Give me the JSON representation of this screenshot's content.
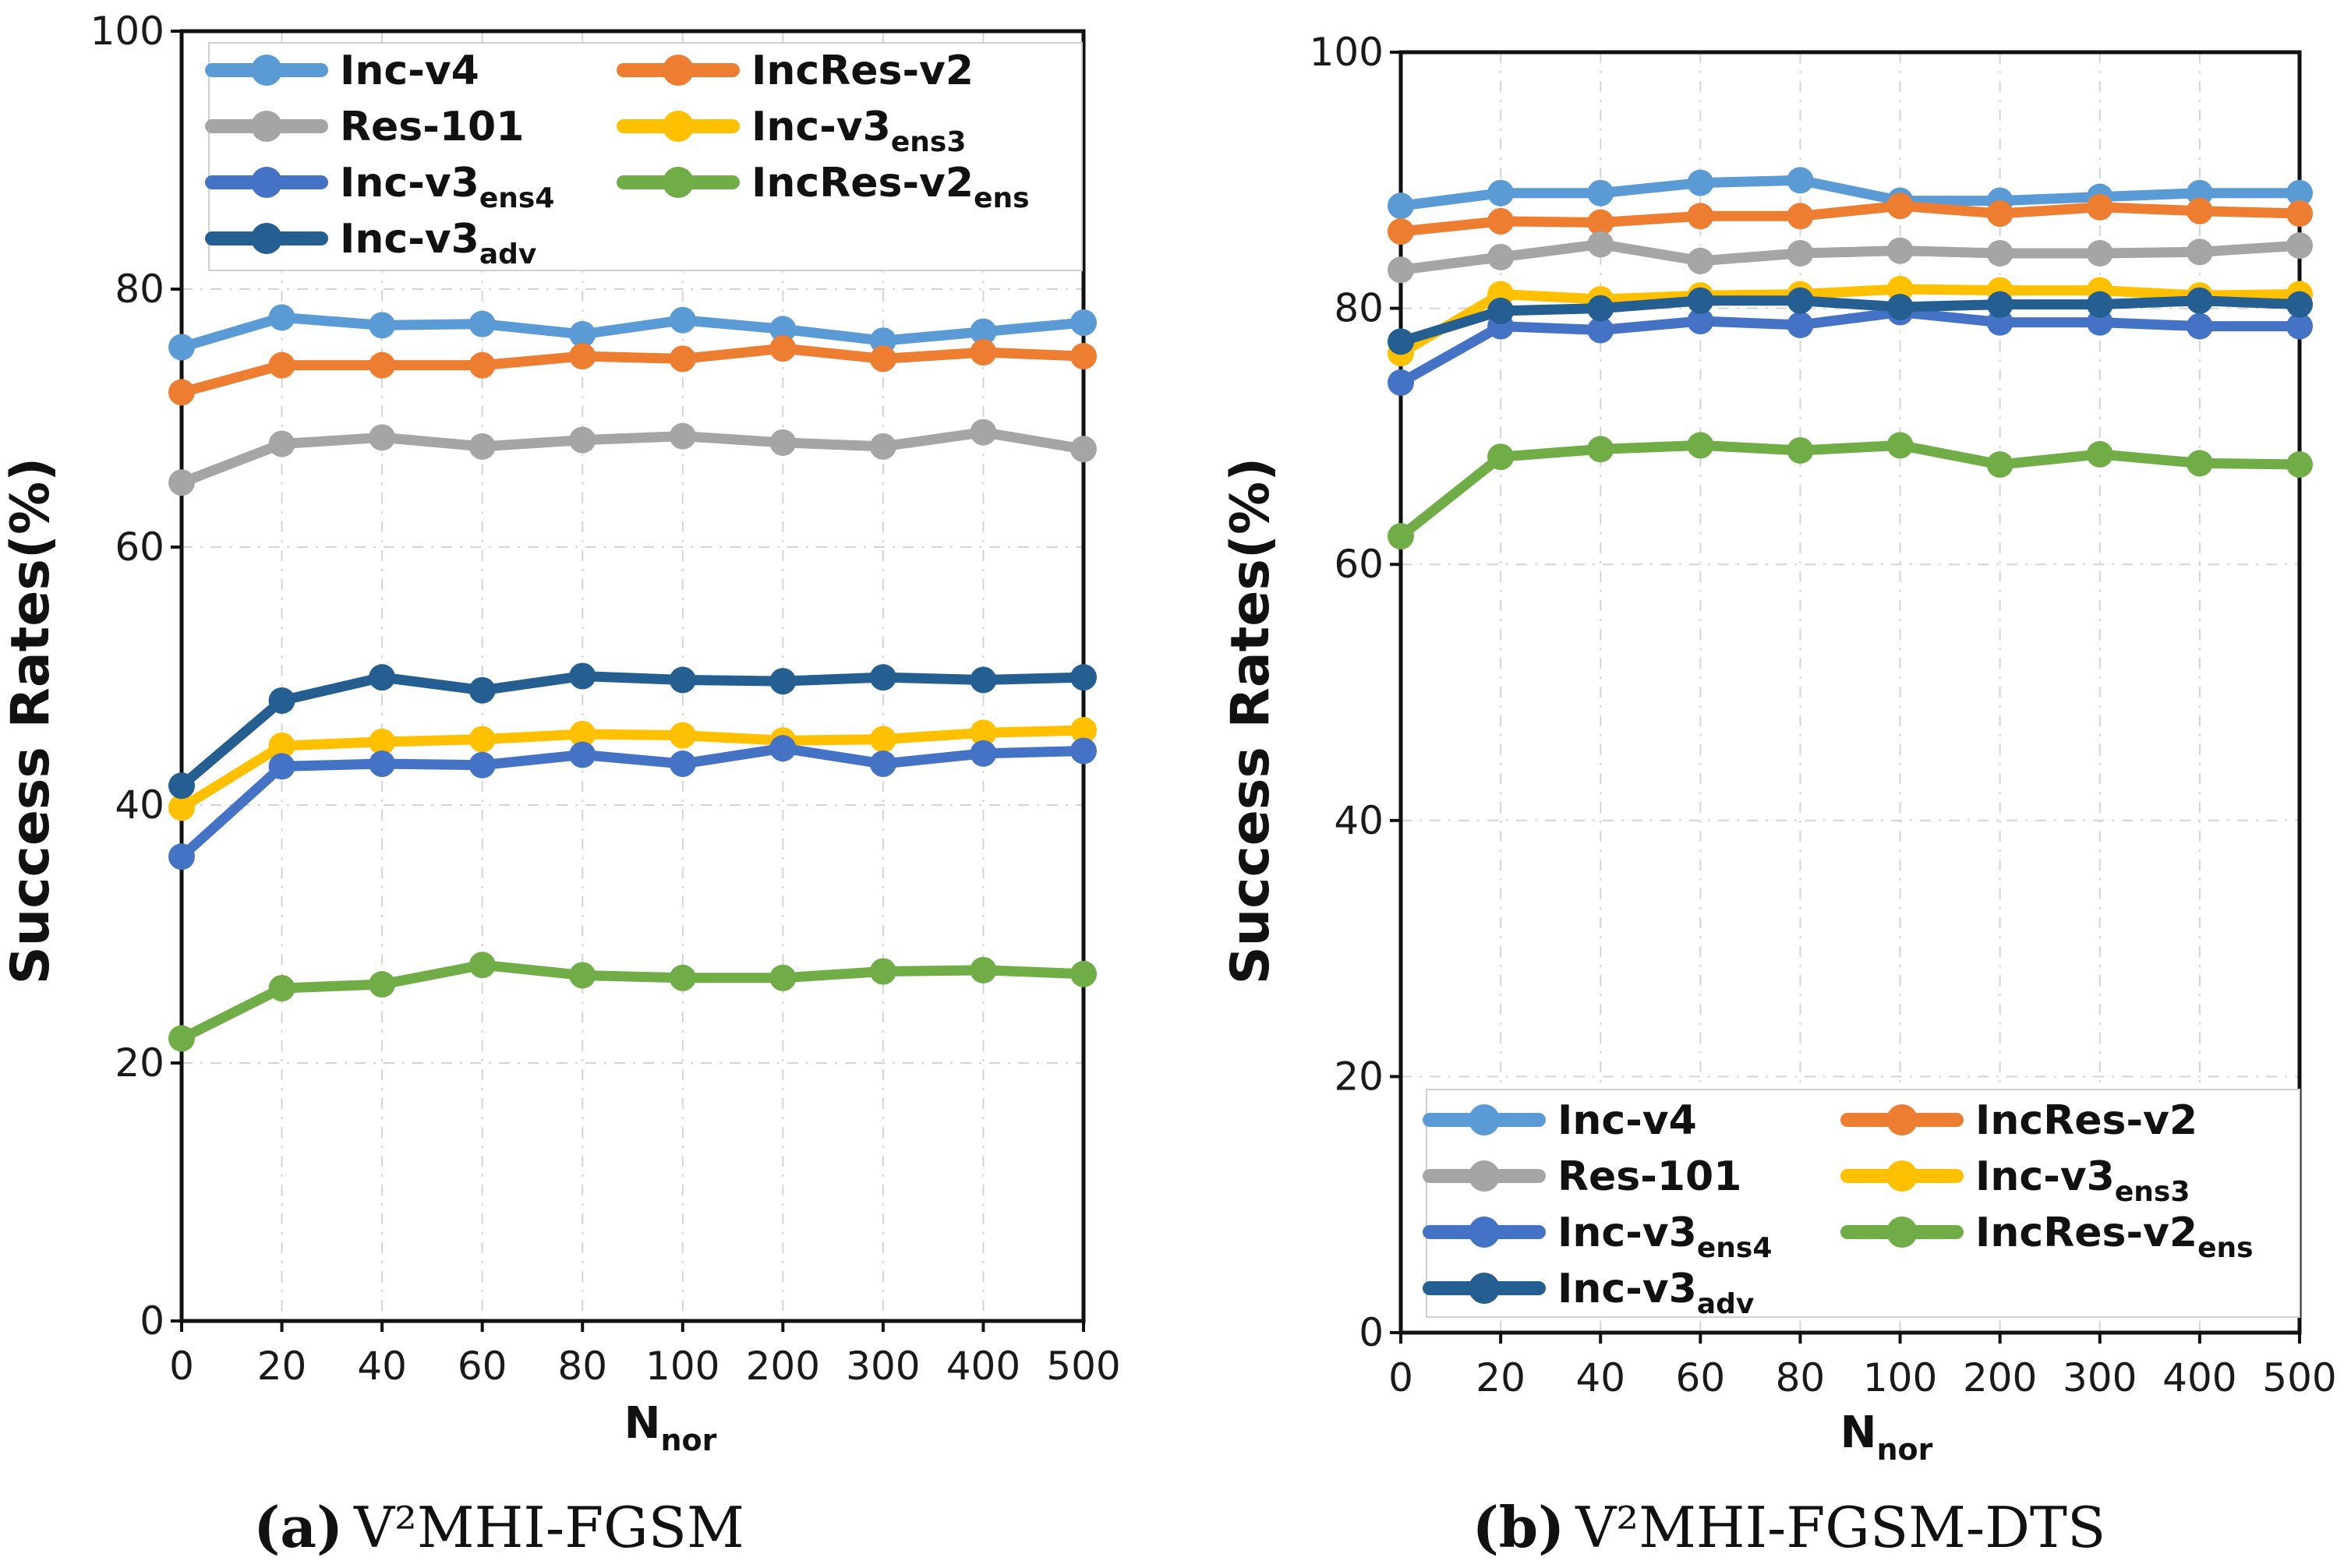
{
  "figure": {
    "caption_a": {
      "label": "(a)",
      "text": "V²MHI-FGSM"
    },
    "caption_b": {
      "label": "(b)",
      "text": "V²MHI-FGSM-DTS"
    }
  },
  "chart_data": [
    {
      "type": "line",
      "title": "V²MHI-FGSM",
      "xlabel": "N",
      "xlabel_sub": "nor",
      "ylabel": "Success Rates(%)",
      "categories": [
        "0",
        "20",
        "40",
        "60",
        "80",
        "100",
        "200",
        "300",
        "400",
        "500"
      ],
      "ylim": [
        0,
        100
      ],
      "yticks": [
        0,
        20,
        40,
        60,
        80,
        100
      ],
      "grid": true,
      "legend_position": "top",
      "series": [
        {
          "name": "Inc-v4",
          "sub": "",
          "color": "#5b9bd5",
          "values": [
            75.5,
            77.8,
            77.2,
            77.3,
            76.5,
            77.6,
            76.9,
            76.0,
            76.7,
            77.4
          ]
        },
        {
          "name": "IncRes-v2",
          "sub": "",
          "color": "#ed7d31",
          "values": [
            72.0,
            74.1,
            74.1,
            74.1,
            74.8,
            74.6,
            75.4,
            74.6,
            75.1,
            74.8
          ]
        },
        {
          "name": "Res-101",
          "sub": "",
          "color": "#a5a5a5",
          "values": [
            65.0,
            68.0,
            68.5,
            67.8,
            68.3,
            68.6,
            68.1,
            67.8,
            68.9,
            67.6
          ]
        },
        {
          "name": "Inc-v3",
          "sub": "ens3",
          "color": "#ffc000",
          "values": [
            39.8,
            44.6,
            44.9,
            45.1,
            45.5,
            45.4,
            45.0,
            45.1,
            45.6,
            45.8
          ]
        },
        {
          "name": "Inc-v3",
          "sub": "ens4",
          "color": "#4472c4",
          "values": [
            36.0,
            43.0,
            43.2,
            43.1,
            43.9,
            43.2,
            44.4,
            43.2,
            44.0,
            44.2
          ]
        },
        {
          "name": "IncRes-v2",
          "sub": "ens",
          "color": "#70ad47",
          "values": [
            21.9,
            25.8,
            26.1,
            27.6,
            26.8,
            26.6,
            26.6,
            27.1,
            27.2,
            26.9
          ]
        },
        {
          "name": "Inc-v3",
          "sub": "adv",
          "color": "#255e91",
          "values": [
            41.5,
            48.1,
            49.9,
            48.9,
            50.0,
            49.7,
            49.6,
            49.9,
            49.7,
            49.9
          ]
        }
      ]
    },
    {
      "type": "line",
      "title": "V²MHI-FGSM-DTS",
      "xlabel": "N",
      "xlabel_sub": "nor",
      "ylabel": "Success Rates(%)",
      "categories": [
        "0",
        "20",
        "40",
        "60",
        "80",
        "100",
        "200",
        "300",
        "400",
        "500"
      ],
      "ylim": [
        0,
        100
      ],
      "yticks": [
        0,
        20,
        40,
        60,
        80,
        100
      ],
      "grid": true,
      "legend_position": "bottom",
      "series": [
        {
          "name": "Inc-v4",
          "sub": "",
          "color": "#5b9bd5",
          "values": [
            88.0,
            89.0,
            89.0,
            89.8,
            90.0,
            88.4,
            88.4,
            88.7,
            89.0,
            89.0
          ]
        },
        {
          "name": "IncRes-v2",
          "sub": "",
          "color": "#ed7d31",
          "values": [
            86.0,
            86.8,
            86.7,
            87.2,
            87.2,
            88.0,
            87.4,
            87.9,
            87.6,
            87.4
          ]
        },
        {
          "name": "Res-101",
          "sub": "",
          "color": "#a5a5a5",
          "values": [
            83.0,
            84.0,
            85.0,
            83.7,
            84.3,
            84.5,
            84.3,
            84.3,
            84.4,
            84.9
          ]
        },
        {
          "name": "Inc-v3",
          "sub": "ens3",
          "color": "#ffc000",
          "values": [
            76.5,
            81.1,
            80.7,
            81.0,
            81.1,
            81.5,
            81.4,
            81.4,
            81.0,
            81.1
          ]
        },
        {
          "name": "Inc-v3",
          "sub": "ens4",
          "color": "#4472c4",
          "values": [
            74.2,
            78.6,
            78.3,
            79.0,
            78.7,
            79.7,
            78.9,
            78.9,
            78.6,
            78.6
          ]
        },
        {
          "name": "IncRes-v2",
          "sub": "ens",
          "color": "#70ad47",
          "values": [
            62.2,
            68.4,
            69.0,
            69.3,
            68.9,
            69.3,
            67.8,
            68.6,
            67.9,
            67.8
          ]
        },
        {
          "name": "Inc-v3",
          "sub": "adv",
          "color": "#255e91",
          "values": [
            77.4,
            79.8,
            80.0,
            80.6,
            80.6,
            80.1,
            80.3,
            80.3,
            80.6,
            80.3
          ]
        }
      ]
    }
  ]
}
